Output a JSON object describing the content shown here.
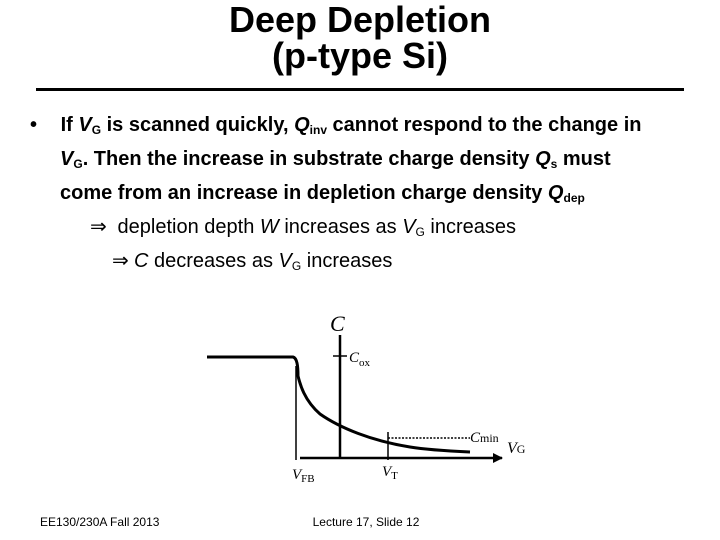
{
  "title": {
    "line1": "Deep Depletion",
    "line2": "(p-type Si)"
  },
  "bullet": {
    "marker": "•",
    "line1": {
      "t1": "If ",
      "VG": "V",
      "VG_sub": "G",
      "t2": " is scanned quickly, ",
      "Q": "Q",
      "Q_sub": "inv",
      "t3": " cannot respond to the change in"
    },
    "line2": {
      "VG": "V",
      "VG_sub": "G",
      "t1": ".  Then the increase in substrate charge density ",
      "Qs": "Q",
      "Qs_sub": "s",
      "t2": " must"
    },
    "line3": {
      "t1": "come from an increase in depletion charge density ",
      "Q": "Q",
      "Q_sub": "dep"
    }
  },
  "implication1": {
    "arrow": "⇒",
    "t1": " depletion depth ",
    "W": "W",
    "t2": " increases as ",
    "VG": "V",
    "VG_sub": "G",
    "t3": " increases"
  },
  "implication2": {
    "arrow": "⇒",
    "C": "C",
    "t1": " decreases as ",
    "VG": "V",
    "VG_sub": "G",
    "t2": " increases"
  },
  "diagram": {
    "y_axis_label": "C",
    "cox_main": "C",
    "cox_sub": "ox",
    "cmin_main": "C",
    "cmin_sub": "min",
    "x_axis_main": "V",
    "x_axis_sub": "G",
    "vfb_main": "V",
    "vfb_sub": "FB",
    "vt_main": "V",
    "vt_sub": "T"
  },
  "footer": {
    "left": "EE130/230A Fall 2013",
    "center": "Lecture 17, Slide 12"
  }
}
